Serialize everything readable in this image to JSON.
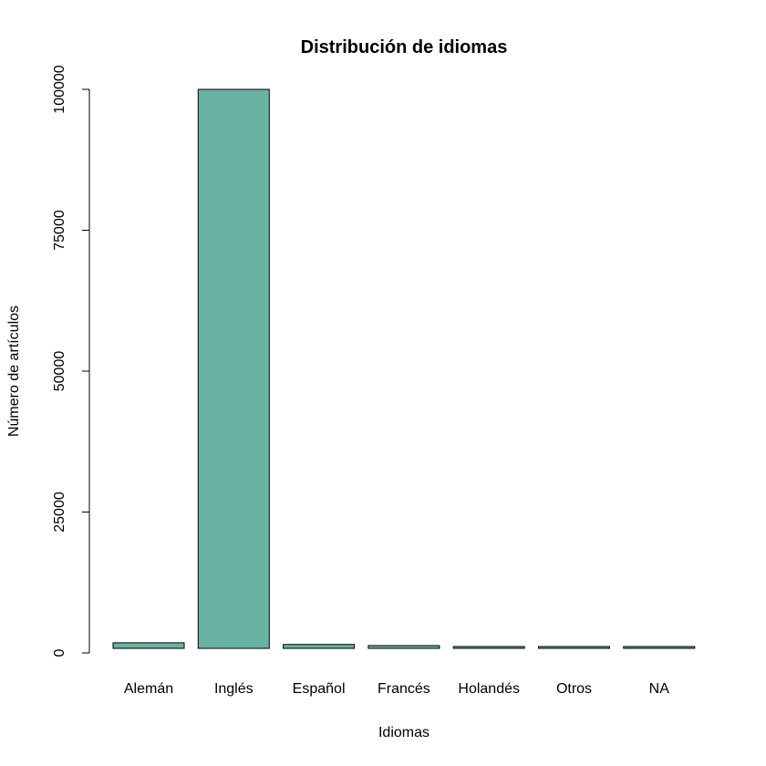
{
  "chart_data": {
    "type": "bar",
    "title": "Distribución de idiomas",
    "xlabel": "Idiomas",
    "ylabel": "Número de artículos",
    "categories": [
      "Alemán",
      "Inglés",
      "Español",
      "Francés",
      "Holandés",
      "Otros",
      "NA"
    ],
    "values": [
      1800,
      100000,
      1500,
      1300,
      400,
      250,
      250
    ],
    "ylim": [
      0,
      100000
    ],
    "yticks": [
      "0",
      "25000",
      "50000",
      "75000",
      "100000"
    ],
    "bar_color": "#69B3A2",
    "bar_border_color": "#000000",
    "grid": false,
    "legend": "none"
  }
}
